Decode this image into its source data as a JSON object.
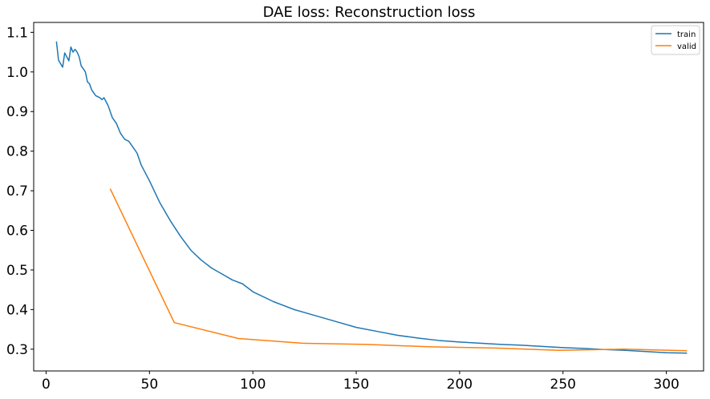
{
  "chart_data": {
    "type": "line",
    "title": "DAE loss: Reconstruction loss",
    "xlabel": "",
    "ylabel": "",
    "xlim": [
      -6,
      318
    ],
    "ylim": [
      0.245,
      1.125
    ],
    "xticks": [
      0,
      50,
      100,
      150,
      200,
      250,
      300
    ],
    "yticks": [
      0.3,
      0.4,
      0.5,
      0.6,
      0.7,
      0.8,
      0.9,
      1.0,
      1.1
    ],
    "ytick_labels": [
      "0.3",
      "0.4",
      "0.5",
      "0.6",
      "0.7",
      "0.8",
      "0.9",
      "1.0",
      "1.1"
    ],
    "grid": false,
    "legend_position": "top-right",
    "series": [
      {
        "name": "train",
        "color": "#1f77b4",
        "x": [
          5,
          6,
          8,
          9,
          11,
          12,
          13,
          14,
          15,
          16,
          17,
          18,
          19,
          20,
          21,
          22,
          24,
          26,
          27,
          28,
          29,
          30,
          32,
          34,
          36,
          38,
          40,
          42,
          44,
          46,
          48,
          50,
          55,
          60,
          65,
          70,
          75,
          80,
          85,
          90,
          95,
          100,
          110,
          120,
          130,
          140,
          150,
          160,
          170,
          180,
          190,
          200,
          210,
          220,
          230,
          240,
          250,
          260,
          270,
          280,
          290,
          300,
          310
        ],
        "values": [
          1.077,
          1.03,
          1.012,
          1.048,
          1.028,
          1.063,
          1.05,
          1.057,
          1.05,
          1.038,
          1.015,
          1.008,
          1.0,
          0.975,
          0.97,
          0.955,
          0.94,
          0.935,
          0.93,
          0.935,
          0.925,
          0.915,
          0.885,
          0.87,
          0.845,
          0.83,
          0.825,
          0.81,
          0.795,
          0.765,
          0.745,
          0.725,
          0.67,
          0.625,
          0.585,
          0.55,
          0.525,
          0.505,
          0.49,
          0.475,
          0.465,
          0.445,
          0.42,
          0.4,
          0.385,
          0.37,
          0.355,
          0.345,
          0.335,
          0.328,
          0.322,
          0.318,
          0.315,
          0.312,
          0.31,
          0.307,
          0.304,
          0.302,
          0.299,
          0.297,
          0.294,
          0.291,
          0.29
        ]
      },
      {
        "name": "valid",
        "color": "#ff7f0e",
        "x": [
          31,
          62,
          93,
          124,
          155,
          186,
          217,
          248,
          279,
          310
        ],
        "values": [
          0.705,
          0.367,
          0.327,
          0.315,
          0.312,
          0.306,
          0.303,
          0.297,
          0.3,
          0.296
        ]
      }
    ]
  }
}
